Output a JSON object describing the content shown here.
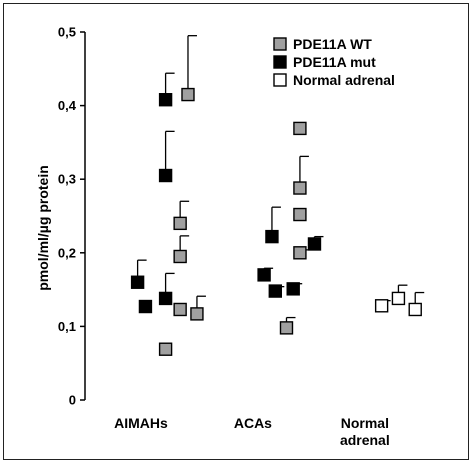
{
  "chart_data": {
    "type": "scatter",
    "ylabel": "pmol/ml/µg protein",
    "ylim": [
      0,
      0.5
    ],
    "yticks": [
      "0",
      "0,1",
      "0,2",
      "0,3",
      "0,4",
      "0,5"
    ],
    "ytick_values": [
      0,
      0.1,
      0.2,
      0.3,
      0.4,
      0.5
    ],
    "categories": [
      {
        "line1": "AIMAHs",
        "line2": ""
      },
      {
        "line1": "ACAs",
        "line2": ""
      },
      {
        "line1": "Normal",
        "line2": "adrenal"
      }
    ],
    "legend_position": "top-right",
    "series": [
      {
        "name": "PDE11A WT",
        "color": "#a0a0a0",
        "points": [
          {
            "x": 1.42,
            "y": 0.415,
            "err": 0.08
          },
          {
            "x": 1.35,
            "y": 0.24,
            "err": 0.03
          },
          {
            "x": 1.35,
            "y": 0.195,
            "err": 0.028
          },
          {
            "x": 1.35,
            "y": 0.123,
            "err": 0.0
          },
          {
            "x": 1.5,
            "y": 0.117,
            "err": 0.024
          },
          {
            "x": 1.22,
            "y": 0.069,
            "err": 0.0
          },
          {
            "x": 2.42,
            "y": 0.369,
            "err": 0.0
          },
          {
            "x": 2.42,
            "y": 0.288,
            "err": 0.043
          },
          {
            "x": 2.42,
            "y": 0.252,
            "err": 0.0
          },
          {
            "x": 2.42,
            "y": 0.2,
            "err": 0.004
          },
          {
            "x": 2.3,
            "y": 0.098,
            "err": 0.014
          }
        ]
      },
      {
        "name": "PDE11A mut",
        "color": "#000000",
        "points": [
          {
            "x": 1.22,
            "y": 0.408,
            "err": 0.036
          },
          {
            "x": 1.22,
            "y": 0.305,
            "err": 0.06
          },
          {
            "x": 1.22,
            "y": 0.138,
            "err": 0.034
          },
          {
            "x": 0.97,
            "y": 0.16,
            "err": 0.03
          },
          {
            "x": 1.04,
            "y": 0.127,
            "err": 0.0
          },
          {
            "x": 2.17,
            "y": 0.222,
            "err": 0.04
          },
          {
            "x": 2.1,
            "y": 0.17,
            "err": 0.009
          },
          {
            "x": 2.2,
            "y": 0.148,
            "err": 0.006
          },
          {
            "x": 2.36,
            "y": 0.151,
            "err": 0.007
          },
          {
            "x": 2.55,
            "y": 0.212,
            "err": 0.01
          }
        ]
      },
      {
        "name": "Normal adrenal",
        "color": "#ffffff",
        "points": [
          {
            "x": 3.15,
            "y": 0.128,
            "err": 0.007
          },
          {
            "x": 3.3,
            "y": 0.138,
            "err": 0.018
          },
          {
            "x": 3.45,
            "y": 0.123,
            "err": 0.023
          }
        ]
      }
    ]
  }
}
